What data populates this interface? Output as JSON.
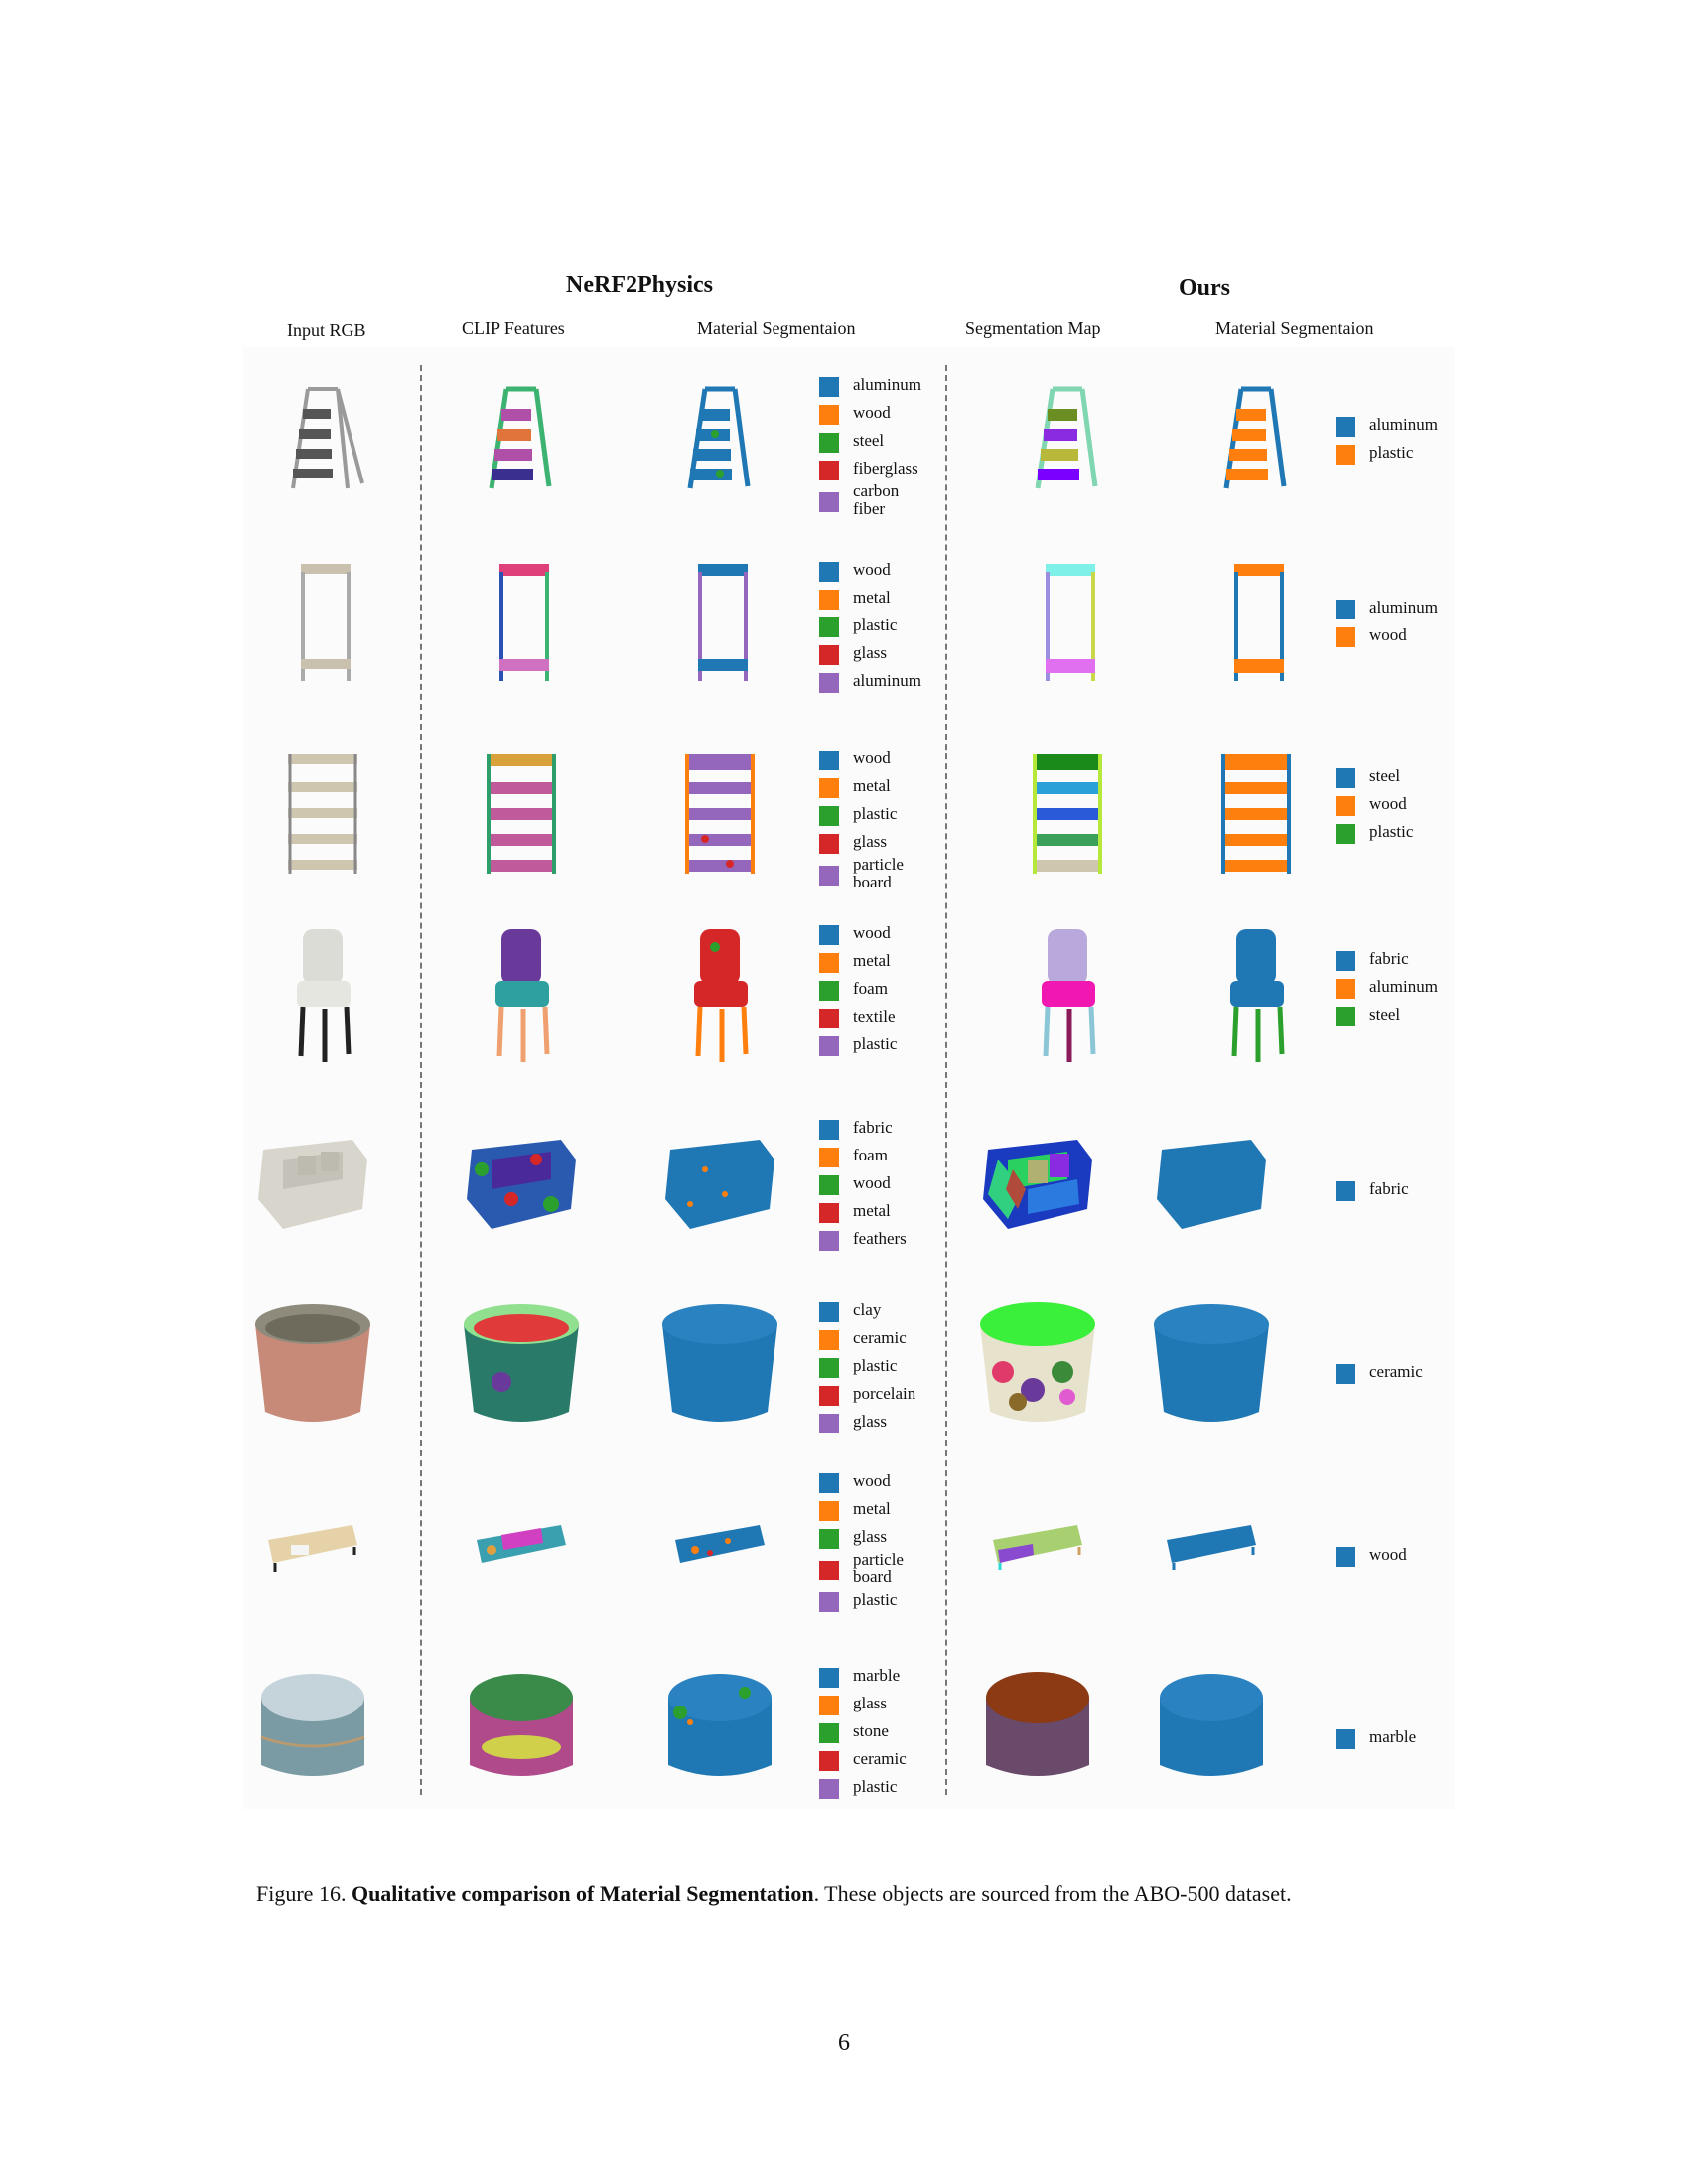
{
  "figure": {
    "group_left": "NeRF2Physics",
    "group_right": "Ours",
    "columns": [
      "Input RGB",
      "CLIP Features",
      "Material Segmentaion",
      "Segmentation Map",
      "Material Segmentaion"
    ],
    "colors": {
      "c1": "#1f77b4",
      "c2": "#ff7f0e",
      "c3": "#2ca02c",
      "c4": "#d62728",
      "c5": "#9467bd"
    },
    "rows": [
      {
        "object": "step ladder",
        "nerf_legend": [
          "aluminum",
          "wood",
          "steel",
          "fiberglass",
          "carbon fiber"
        ],
        "ours_legend": [
          "aluminum",
          "plastic"
        ]
      },
      {
        "object": "clothes rack",
        "nerf_legend": [
          "wood",
          "metal",
          "plastic",
          "glass",
          "aluminum"
        ],
        "ours_legend": [
          "aluminum",
          "wood"
        ]
      },
      {
        "object": "shelving unit",
        "nerf_legend": [
          "wood",
          "metal",
          "plastic",
          "glass",
          "particle board"
        ],
        "ours_legend": [
          "steel",
          "wood",
          "plastic"
        ]
      },
      {
        "object": "bar chair",
        "nerf_legend": [
          "wood",
          "metal",
          "foam",
          "textile",
          "plastic"
        ],
        "ours_legend": [
          "fabric",
          "aluminum",
          "steel"
        ]
      },
      {
        "object": "sofa",
        "nerf_legend": [
          "fabric",
          "foam",
          "wood",
          "metal",
          "feathers"
        ],
        "ours_legend": [
          "fabric"
        ]
      },
      {
        "object": "planter pot",
        "nerf_legend": [
          "clay",
          "ceramic",
          "plastic",
          "porcelain",
          "glass"
        ],
        "ours_legend": [
          "ceramic"
        ]
      },
      {
        "object": "tv stand",
        "nerf_legend": [
          "wood",
          "metal",
          "glass",
          "particle board",
          "plastic"
        ],
        "ours_legend": [
          "wood"
        ]
      },
      {
        "object": "ottoman",
        "nerf_legend": [
          "marble",
          "glass",
          "stone",
          "ceramic",
          "plastic"
        ],
        "ours_legend": [
          "marble"
        ]
      }
    ]
  },
  "caption": {
    "label": "Figure 16. ",
    "title": "Qualitative comparison of Material Segmentation",
    "rest": ". These objects are sourced from the ABO-500 dataset."
  },
  "page_number": "6"
}
